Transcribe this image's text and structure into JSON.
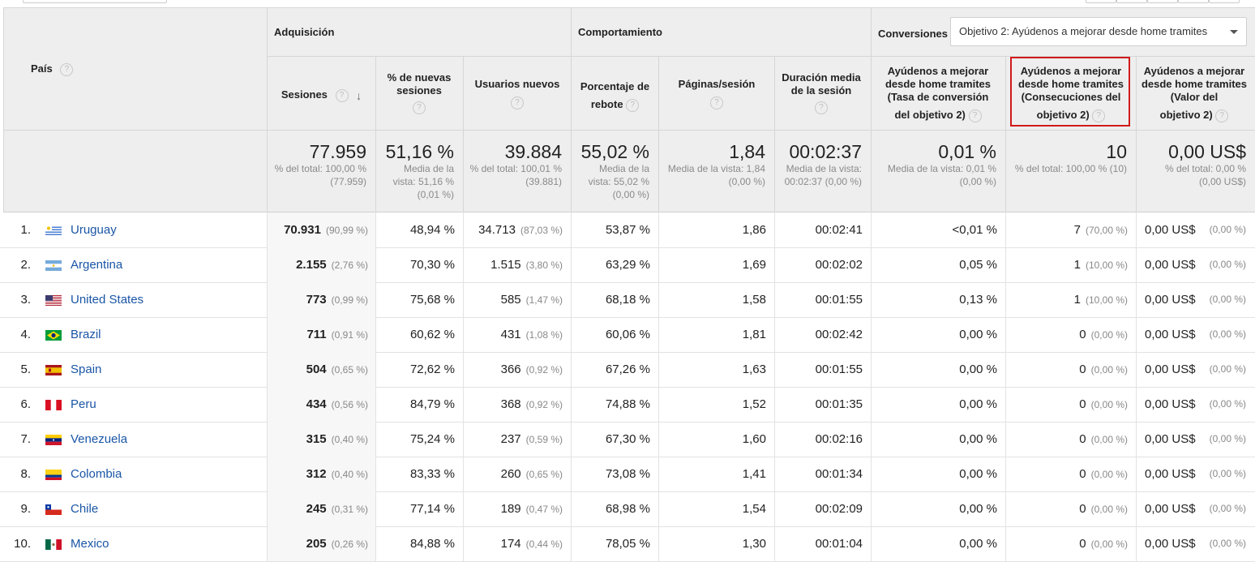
{
  "header": {
    "dimension": "País",
    "groups": {
      "acquisition": "Adquisición",
      "behavior": "Comportamiento",
      "conversions": "Conversiones"
    },
    "goal_select_value": "Objetivo 2: Ayúdenos a mejorar desde home tramites",
    "columns": {
      "sessions": "Sesiones",
      "new_sessions": "% de nuevas sesiones",
      "new_users": "Usuarios nuevos",
      "bounce_a": "Porcentaje de",
      "bounce_b": "rebote",
      "pages": "Páginas/sesión",
      "duration": "Duración media de la sesión",
      "conv_rate_a": "Ayúdenos a mejorar desde home tramites (Tasa de conversión",
      "conv_rate_b": "del objetivo 2)",
      "completions_a": "Ayúdenos a mejorar desde home tramites (Consecuciones del",
      "completions_b": "objetivo 2)",
      "value_a": "Ayúdenos a mejorar desde home tramites (Valor del",
      "value_b": "objetivo 2)"
    }
  },
  "totals": {
    "sessions": {
      "main": "77.959",
      "sub": "% del total: 100,00 % (77.959)"
    },
    "new_sessions": {
      "main": "51,16 %",
      "sub": "Media de la vista: 51,16 % (0,01 %)"
    },
    "new_users": {
      "main": "39.884",
      "sub": "% del total: 100,01 % (39.881)"
    },
    "bounce": {
      "main": "55,02 %",
      "sub": "Media de la vista: 55,02 % (0,00 %)"
    },
    "pages": {
      "main": "1,84",
      "sub": "Media de la vista: 1,84 (0,00 %)"
    },
    "duration": {
      "main": "00:02:37",
      "sub": "Media de la vista: 00:02:37 (0,00 %)"
    },
    "conv_rate": {
      "main": "0,01 %",
      "sub": "Media de la vista: 0,01 % (0,00 %)"
    },
    "completions": {
      "main": "10",
      "sub": "% del total: 100,00 % (10)"
    },
    "value": {
      "main": "0,00 US$",
      "sub": "% del total: 0,00 % (0,00 US$)"
    }
  },
  "rows": [
    {
      "idx": "1.",
      "flag": "uy",
      "country": "Uruguay",
      "sessions": "70.931",
      "sessions_pct": "(90,99 %)",
      "new_sessions": "48,94 %",
      "new_users": "34.713",
      "new_users_pct": "(87,03 %)",
      "bounce": "53,87 %",
      "pages": "1,86",
      "duration": "00:02:41",
      "conv_rate": "<0,01 %",
      "completions": "7",
      "completions_pct": "(70,00 %)",
      "value": "0,00 US$",
      "value_pct": "(0,00 %)"
    },
    {
      "idx": "2.",
      "flag": "ar",
      "country": "Argentina",
      "sessions": "2.155",
      "sessions_pct": "(2,76 %)",
      "new_sessions": "70,30 %",
      "new_users": "1.515",
      "new_users_pct": "(3,80 %)",
      "bounce": "63,29 %",
      "pages": "1,69",
      "duration": "00:02:02",
      "conv_rate": "0,05 %",
      "completions": "1",
      "completions_pct": "(10,00 %)",
      "value": "0,00 US$",
      "value_pct": "(0,00 %)"
    },
    {
      "idx": "3.",
      "flag": "us",
      "country": "United States",
      "sessions": "773",
      "sessions_pct": "(0,99 %)",
      "new_sessions": "75,68 %",
      "new_users": "585",
      "new_users_pct": "(1,47 %)",
      "bounce": "68,18 %",
      "pages": "1,58",
      "duration": "00:01:55",
      "conv_rate": "0,13 %",
      "completions": "1",
      "completions_pct": "(10,00 %)",
      "value": "0,00 US$",
      "value_pct": "(0,00 %)"
    },
    {
      "idx": "4.",
      "flag": "br",
      "country": "Brazil",
      "sessions": "711",
      "sessions_pct": "(0,91 %)",
      "new_sessions": "60,62 %",
      "new_users": "431",
      "new_users_pct": "(1,08 %)",
      "bounce": "60,06 %",
      "pages": "1,81",
      "duration": "00:02:42",
      "conv_rate": "0,00 %",
      "completions": "0",
      "completions_pct": "(0,00 %)",
      "value": "0,00 US$",
      "value_pct": "(0,00 %)"
    },
    {
      "idx": "5.",
      "flag": "es",
      "country": "Spain",
      "sessions": "504",
      "sessions_pct": "(0,65 %)",
      "new_sessions": "72,62 %",
      "new_users": "366",
      "new_users_pct": "(0,92 %)",
      "bounce": "67,26 %",
      "pages": "1,63",
      "duration": "00:01:55",
      "conv_rate": "0,00 %",
      "completions": "0",
      "completions_pct": "(0,00 %)",
      "value": "0,00 US$",
      "value_pct": "(0,00 %)"
    },
    {
      "idx": "6.",
      "flag": "pe",
      "country": "Peru",
      "sessions": "434",
      "sessions_pct": "(0,56 %)",
      "new_sessions": "84,79 %",
      "new_users": "368",
      "new_users_pct": "(0,92 %)",
      "bounce": "74,88 %",
      "pages": "1,52",
      "duration": "00:01:35",
      "conv_rate": "0,00 %",
      "completions": "0",
      "completions_pct": "(0,00 %)",
      "value": "0,00 US$",
      "value_pct": "(0,00 %)"
    },
    {
      "idx": "7.",
      "flag": "ve",
      "country": "Venezuela",
      "sessions": "315",
      "sessions_pct": "(0,40 %)",
      "new_sessions": "75,24 %",
      "new_users": "237",
      "new_users_pct": "(0,59 %)",
      "bounce": "67,30 %",
      "pages": "1,60",
      "duration": "00:02:16",
      "conv_rate": "0,00 %",
      "completions": "0",
      "completions_pct": "(0,00 %)",
      "value": "0,00 US$",
      "value_pct": "(0,00 %)"
    },
    {
      "idx": "8.",
      "flag": "co",
      "country": "Colombia",
      "sessions": "312",
      "sessions_pct": "(0,40 %)",
      "new_sessions": "83,33 %",
      "new_users": "260",
      "new_users_pct": "(0,65 %)",
      "bounce": "73,08 %",
      "pages": "1,41",
      "duration": "00:01:34",
      "conv_rate": "0,00 %",
      "completions": "0",
      "completions_pct": "(0,00 %)",
      "value": "0,00 US$",
      "value_pct": "(0,00 %)"
    },
    {
      "idx": "9.",
      "flag": "cl",
      "country": "Chile",
      "sessions": "245",
      "sessions_pct": "(0,31 %)",
      "new_sessions": "77,14 %",
      "new_users": "189",
      "new_users_pct": "(0,47 %)",
      "bounce": "68,98 %",
      "pages": "1,54",
      "duration": "00:02:09",
      "conv_rate": "0,00 %",
      "completions": "0",
      "completions_pct": "(0,00 %)",
      "value": "0,00 US$",
      "value_pct": "(0,00 %)"
    },
    {
      "idx": "10.",
      "flag": "mx",
      "country": "Mexico",
      "sessions": "205",
      "sessions_pct": "(0,26 %)",
      "new_sessions": "84,88 %",
      "new_users": "174",
      "new_users_pct": "(0,44 %)",
      "bounce": "78,05 %",
      "pages": "1,30",
      "duration": "00:01:04",
      "conv_rate": "0,00 %",
      "completions": "0",
      "completions_pct": "(0,00 %)",
      "value": "0,00 US$",
      "value_pct": "(0,00 %)"
    }
  ]
}
